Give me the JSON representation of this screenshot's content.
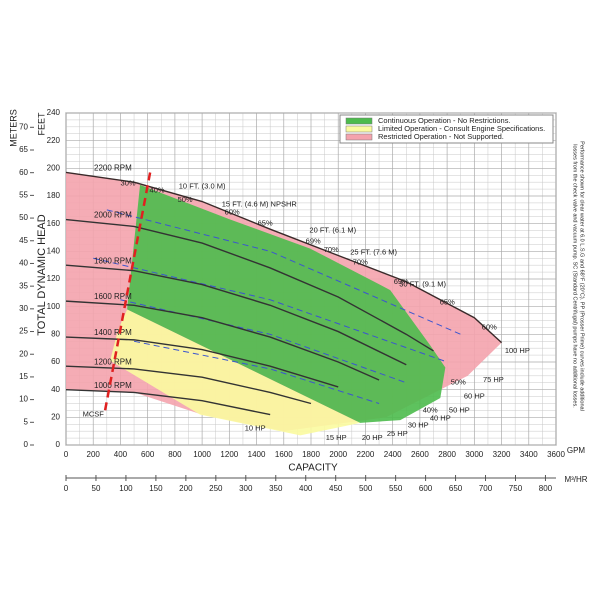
{
  "chart_data": {
    "type": "line",
    "y_label": "FEET",
    "y2_label": "METERS",
    "y_title": "TOTAL DYNAMIC HEAD",
    "x_label": "CAPACITY",
    "x_unit": "GPM",
    "x2_unit": "M³/HR",
    "xlim": [
      0,
      3600
    ],
    "xticks": [
      0,
      200,
      400,
      600,
      800,
      1000,
      1200,
      1400,
      1600,
      1800,
      2000,
      2200,
      2400,
      2600,
      2800,
      3000,
      3200,
      3400,
      3600
    ],
    "ylim": [
      0,
      240
    ],
    "yticks": [
      0,
      20,
      40,
      60,
      80,
      100,
      120,
      140,
      160,
      180,
      200,
      220,
      240
    ],
    "y2lim": [
      0,
      73.15
    ],
    "y2ticks": [
      0,
      5,
      10,
      15,
      20,
      25,
      30,
      35,
      40,
      45,
      50,
      55,
      60,
      65,
      70
    ],
    "x2lim": [
      0,
      817.6
    ],
    "x2ticks": [
      0,
      50,
      100,
      150,
      200,
      250,
      300,
      350,
      400,
      450,
      500,
      550,
      600,
      650,
      700,
      750,
      800
    ],
    "grid": true,
    "minor_grid": true,
    "legend": "top-right",
    "regions": [
      {
        "name": "Restricted Operation - Not Supported.",
        "color": "#f4a3ad",
        "x": [
          0,
          500,
          1000,
          1500,
          2000,
          2500,
          3000,
          3200,
          2950,
          2350,
          1600,
          1000,
          500,
          0
        ],
        "values": [
          197,
          190,
          176,
          156,
          137,
          118,
          92,
          74,
          50,
          20,
          10,
          22,
          38,
          40
        ]
      },
      {
        "name": "Limited Operation - Consult Engine Specifications.",
        "color": "#fbfba0",
        "x": [
          449,
          2162,
          1721,
          985,
          324,
          382
        ],
        "values": [
          98,
          16,
          7,
          22,
          61,
          83
        ]
      },
      {
        "name": "Continuous Operation - No Restrictions.",
        "color": "#4dbb4d",
        "x": [
          544,
          1206,
          1794,
          2382,
          2676,
          2787,
          2750,
          2456,
          2162,
          449
        ],
        "values": [
          188,
          163,
          142,
          112,
          72,
          56,
          34,
          18,
          16,
          98
        ]
      }
    ],
    "series": [
      {
        "name": "2200 RPM",
        "color": "#3a2a2a",
        "x": [
          0,
          500,
          1000,
          1500,
          2000,
          2500,
          3000,
          3200
        ],
        "values": [
          197,
          190,
          176,
          156,
          137,
          118,
          92,
          74
        ]
      },
      {
        "name": "2000 RPM",
        "color": "#333333",
        "x": [
          0,
          500,
          1000,
          1500,
          2000,
          2500,
          2700
        ],
        "values": [
          163,
          158,
          146,
          128,
          107,
          80,
          68
        ]
      },
      {
        "name": "1800 RPM",
        "color": "#333333",
        "x": [
          0,
          500,
          1000,
          1500,
          2000,
          2500
        ],
        "values": [
          130,
          126,
          116,
          101,
          82,
          58
        ]
      },
      {
        "name": "1600 RPM",
        "color": "#333333",
        "x": [
          0,
          500,
          1000,
          1500,
          2000,
          2300
        ],
        "values": [
          104,
          101,
          92,
          78,
          60,
          47
        ]
      },
      {
        "name": "1400 RPM",
        "color": "#333333",
        "x": [
          0,
          500,
          1000,
          1500,
          2000
        ],
        "values": [
          78,
          76,
          69,
          57,
          42
        ]
      },
      {
        "name": "1200 RPM",
        "color": "#333333",
        "x": [
          0,
          500,
          1000,
          1500,
          1800
        ],
        "values": [
          57,
          55,
          49,
          38,
          30
        ]
      },
      {
        "name": "1000 RPM",
        "color": "#333333",
        "x": [
          0,
          500,
          1000,
          1500
        ],
        "values": [
          40,
          38,
          32,
          22
        ]
      }
    ],
    "npshr_color": "#3b55d0",
    "npshr_curves": [
      {
        "x": [
          300,
          1500,
          2900
        ],
        "values": [
          170,
          140,
          80
        ]
      },
      {
        "x": [
          200,
          1500,
          2800
        ],
        "values": [
          135,
          105,
          60
        ]
      },
      {
        "x": [
          400,
          1500,
          2500
        ],
        "values": [
          105,
          80,
          45
        ]
      },
      {
        "x": [
          500,
          1500,
          2300
        ],
        "values": [
          75,
          55,
          30
        ]
      }
    ],
    "mcsf": {
      "color": "#e02020",
      "x": [
        618,
        287
      ],
      "values": [
        197,
        25
      ]
    },
    "annotations": [
      {
        "text": "30%",
        "x": 456,
        "y": 189,
        "color": "#222"
      },
      {
        "text": "40%",
        "x": 669,
        "y": 184,
        "color": "#222"
      },
      {
        "text": "50%",
        "x": 875,
        "y": 177,
        "color": "#222"
      },
      {
        "text": "60%",
        "x": 1221,
        "y": 168,
        "color": "#222"
      },
      {
        "text": "65%",
        "x": 1463,
        "y": 160,
        "color": "#222"
      },
      {
        "text": "69%",
        "x": 1816,
        "y": 147,
        "color": "#222"
      },
      {
        "text": "70%",
        "x": 1949,
        "y": 141,
        "color": "#222"
      },
      {
        "text": "70%",
        "x": 2162,
        "y": 132,
        "color": "#222"
      },
      {
        "text": "69%",
        "x": 2463,
        "y": 118,
        "color": "#222"
      },
      {
        "text": "65%",
        "x": 2801,
        "y": 103,
        "color": "#222"
      },
      {
        "text": "60%",
        "x": 3110,
        "y": 85,
        "color": "#222"
      },
      {
        "text": "50%",
        "x": 2882,
        "y": 45,
        "color": "#222"
      },
      {
        "text": "40%",
        "x": 2676,
        "y": 25,
        "color": "#222"
      },
      {
        "text": "10 FT. (3.0 M)",
        "x": 1000,
        "y": 187,
        "color": "#3b55d0"
      },
      {
        "text": "15 FT. (4.6 M) NPSHR",
        "x": 1420,
        "y": 174,
        "color": "#3b55d0"
      },
      {
        "text": "20 FT. (6.1 M)",
        "x": 1960,
        "y": 155,
        "color": "#3b55d0"
      },
      {
        "text": "25 FT. (7.6 M)",
        "x": 2260,
        "y": 139,
        "color": "#3b55d0"
      },
      {
        "text": "30 FT. (9.1 M)",
        "x": 2620,
        "y": 116,
        "color": "#3b55d0"
      },
      {
        "text": "100 HP",
        "x": 3316,
        "y": 68,
        "color": "#3b55d0"
      },
      {
        "text": "75 HP",
        "x": 3140,
        "y": 47,
        "color": "#3b55d0"
      },
      {
        "text": "60 HP",
        "x": 3000,
        "y": 35,
        "color": "#3b55d0"
      },
      {
        "text": "50 HP",
        "x": 2890,
        "y": 25,
        "color": "#3b55d0"
      },
      {
        "text": "40 HP",
        "x": 2750,
        "y": 19,
        "color": "#3b55d0"
      },
      {
        "text": "30 HP",
        "x": 2588,
        "y": 14,
        "color": "#3b55d0"
      },
      {
        "text": "25 HP",
        "x": 2434,
        "y": 8,
        "color": "#3b55d0"
      },
      {
        "text": "20 HP",
        "x": 2250,
        "y": 5,
        "color": "#3b55d0"
      },
      {
        "text": "15 HP",
        "x": 1985,
        "y": 5,
        "color": "#3b55d0"
      },
      {
        "text": "10 HP",
        "x": 1390,
        "y": 12,
        "color": "#3b55d0"
      },
      {
        "text": "MCSF",
        "x": 200,
        "y": 22,
        "color": "#e02020"
      }
    ],
    "notes": [
      "Performance shown for clear water at 6.0 L.S.G and 68°F (20°C). PP (Prosser Prime) curves include additional",
      "losses from the check valve and vacuum pump. SC (Standard Centrifugal) pumps have no additional losses."
    ]
  }
}
